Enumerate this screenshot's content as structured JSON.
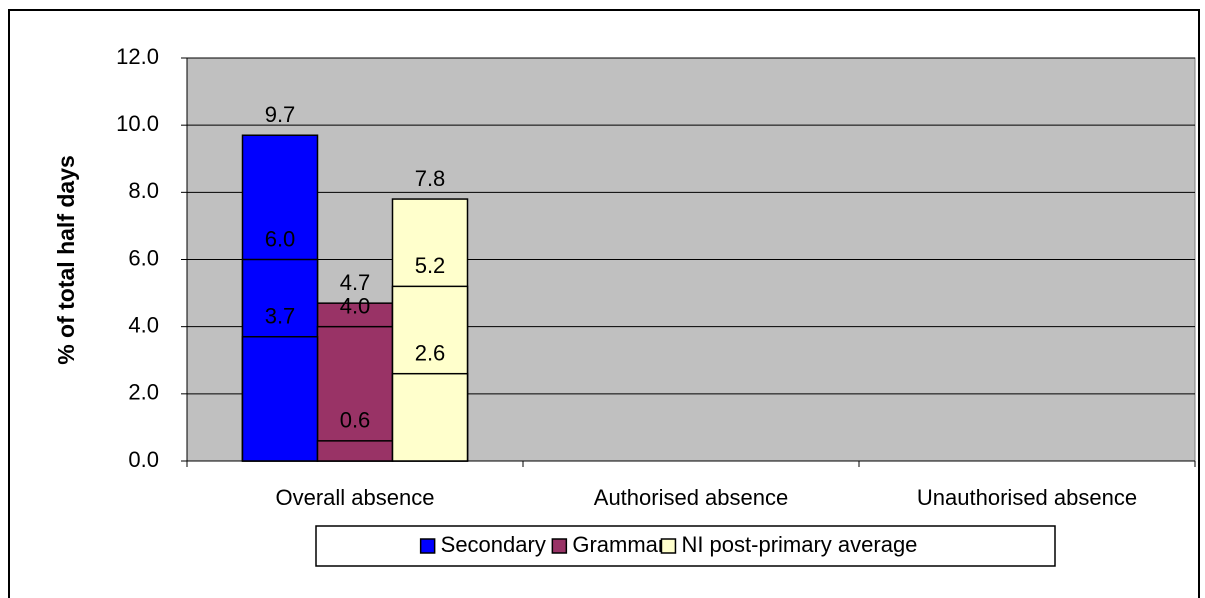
{
  "chart_data": {
    "type": "bar",
    "y_label": "% of total half days",
    "categories": [
      "Overall absence",
      "Authorised absence",
      "Unauthorised absence"
    ],
    "series": [
      {
        "name": "Secondary",
        "color": "#0000ff",
        "values": [
          9.7,
          6.0,
          3.7
        ],
        "value_labels": [
          "9.7",
          "6.0",
          "3.7"
        ]
      },
      {
        "name": "Grammar",
        "color": "#993366",
        "values": [
          4.7,
          4.0,
          0.6
        ],
        "value_labels": [
          "4.7",
          "4.0",
          "0.6"
        ]
      },
      {
        "name": "NI post-primary average",
        "color": "#ffffcc",
        "values": [
          7.8,
          5.2,
          2.6
        ],
        "value_labels": [
          "7.8",
          "5.2",
          "2.6"
        ]
      }
    ],
    "ylim": [
      0,
      12
    ],
    "yticks": [
      {
        "value": 0,
        "label": "0.0"
      },
      {
        "value": 2,
        "label": "2.0"
      },
      {
        "value": 4,
        "label": "4.0"
      },
      {
        "value": 6,
        "label": "6.0"
      },
      {
        "value": 8,
        "label": "8.0"
      },
      {
        "value": 10,
        "label": "10.0"
      },
      {
        "value": 12,
        "label": "12.0"
      }
    ],
    "grid": true,
    "legend": "bottom"
  }
}
